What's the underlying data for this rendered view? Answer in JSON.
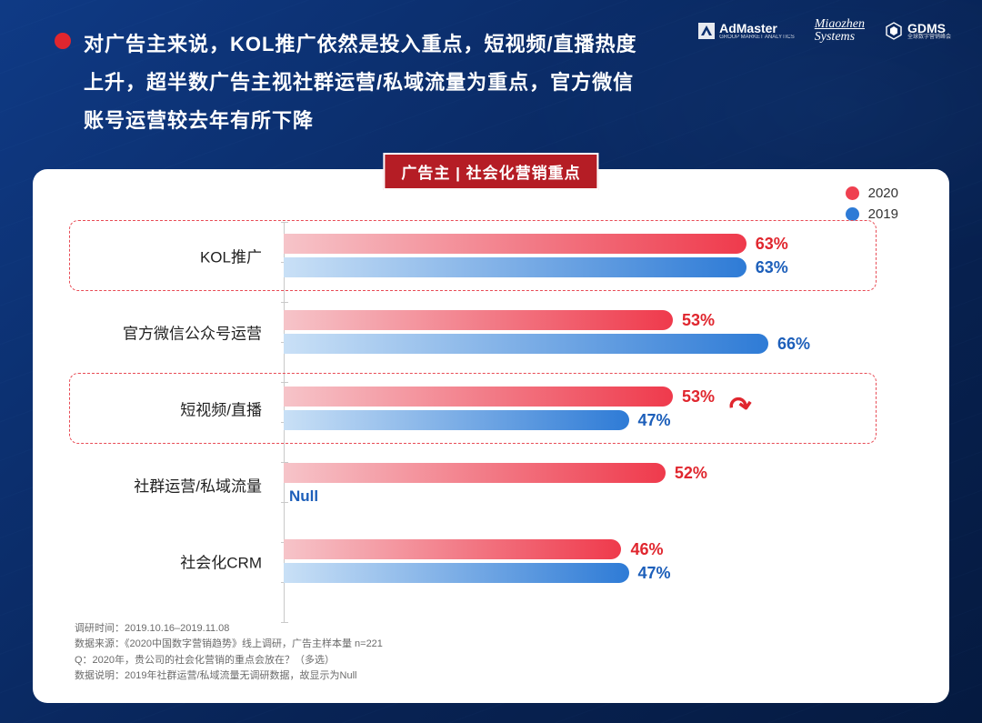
{
  "colors": {
    "bg_dark": "#082355",
    "bullet": "#e0262e",
    "badge_bg": "#b51d25",
    "series_2020": "#ef4050",
    "series_2020_label": "#e0262e",
    "series_2019": "#2e7bd6",
    "series_2019_label": "#1d5fba",
    "highlight_border": "#e84b55",
    "null_text": "#1d5fba",
    "axis": "#c9c9c9",
    "footnote": "#6b6b6b",
    "text_dark": "#222222"
  },
  "header": {
    "title": "对广告主来说，KOL推广依然是投入重点，短视频/直播热度上升，超半数广告主视社群运营/私域流量为重点，官方微信账号运营较去年有所下降"
  },
  "logos": {
    "admaster": {
      "name": "AdMaster",
      "sub": "GROUP MARKET ANALYTICS"
    },
    "miaozhen": {
      "top": "Miaozhen",
      "bottom": "Systems"
    },
    "gdms": {
      "name": "GDMS",
      "sub": "全球数字营销峰会"
    }
  },
  "badge": "广告主 | 社会化营销重点",
  "legend": [
    {
      "label": "2020",
      "color": "#ef4050"
    },
    {
      "label": "2019",
      "color": "#2e7bd6"
    }
  ],
  "chart": {
    "type": "grouped-horizontal-bar",
    "x_domain_percent": 80,
    "bar_gradient_2020": {
      "from": "#f6c4c9",
      "to": "#ef3a4c"
    },
    "bar_gradient_2019": {
      "from": "#c9e0f6",
      "to": "#2e7bd6"
    },
    "value_fontsize": 18,
    "category_fontsize": 17,
    "categories": [
      {
        "label": "KOL推广",
        "v2020": 63,
        "v2019": 63,
        "highlight": true,
        "arrow": false
      },
      {
        "label": "官方微信公众号运营",
        "v2020": 53,
        "v2019": 66,
        "highlight": false,
        "arrow": false
      },
      {
        "label": "短视频/直播",
        "v2020": 53,
        "v2019": 47,
        "highlight": true,
        "arrow": true
      },
      {
        "label": "社群运营/私域流量",
        "v2020": 52,
        "v2019": null,
        "null_label": "Null",
        "highlight": false,
        "arrow": false
      },
      {
        "label": "社会化CRM",
        "v2020": 46,
        "v2019": 47,
        "highlight": false,
        "arrow": false
      }
    ]
  },
  "footnotes": [
    "调研时间：2019.10.16–2019.11.08",
    "数据来源：《2020中国数字营销趋势》线上调研，广告主样本量 n=221",
    "Q：2020年，贵公司的社会化营销的重点会放在？（多选）",
    "数据说明：2019年社群运营/私域流量无调研数据，故显示为Null"
  ]
}
